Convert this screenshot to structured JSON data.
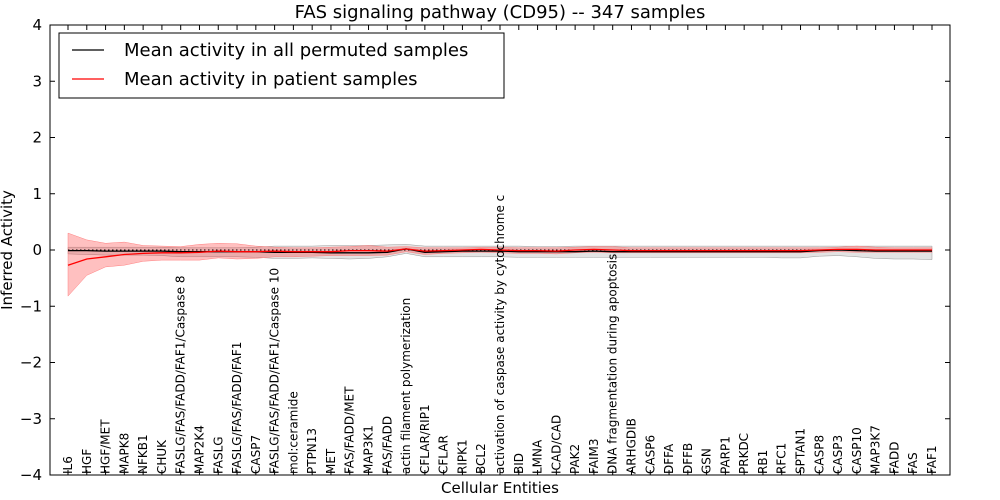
{
  "chart_data": {
    "type": "line",
    "title": "FAS signaling pathway (CD95) -- 347 samples",
    "xlabel": "Cellular Entities",
    "ylabel": "Inferred Activity",
    "ylim": [
      -4,
      4
    ],
    "yticks": [
      "4",
      "3",
      "2",
      "1",
      "0",
      "−1",
      "−2",
      "−3",
      "−4"
    ],
    "legend_position": "top-left",
    "categories": [
      "IL6",
      "HGF",
      "HGF/MET",
      "MAPK8",
      "NFKB1",
      "CHUK",
      "FASLG/FAS/FADD/FAF1/Caspase 8",
      "MAP2K4",
      "FASLG",
      "FASLG/FAS/FADD/FAF1",
      "CASP7",
      "FASLG/FAS/FADD/FAF1/Caspase 10",
      "mol:ceramide",
      "PTPN13",
      "MET",
      "FAS/FADD/MET",
      "MAP3K1",
      "FAS/FADD",
      "actin filament polymerization",
      "CFLAR/RIP1",
      "CFLAR",
      "RIPK1",
      "BCL2",
      "activation of caspase activity by cytochrome c",
      "BID",
      "LMNA",
      "ICAD/CAD",
      "PAK2",
      "FAIM3",
      "DNA fragmentation during apoptosis",
      "ARHGDIB",
      "CASP6",
      "DFFA",
      "DFFB",
      "GSN",
      "PARP1",
      "PRKDC",
      "RB1",
      "RFC1",
      "SPTAN1",
      "CASP8",
      "CASP3",
      "CASP10",
      "MAP3K7",
      "FADD",
      "FAS",
      "FAF1"
    ],
    "series": [
      {
        "name": "Mean activity in all permuted samples",
        "color": "#000000",
        "values": [
          -0.01,
          -0.01,
          -0.02,
          -0.02,
          -0.02,
          -0.02,
          -0.03,
          -0.03,
          -0.03,
          -0.03,
          -0.03,
          -0.04,
          -0.04,
          -0.04,
          -0.05,
          -0.05,
          -0.05,
          -0.04,
          0.02,
          -0.04,
          -0.03,
          -0.02,
          -0.02,
          -0.02,
          -0.03,
          -0.03,
          -0.03,
          -0.03,
          -0.02,
          -0.03,
          -0.03,
          -0.03,
          -0.03,
          -0.03,
          -0.03,
          -0.03,
          -0.03,
          -0.03,
          -0.03,
          -0.03,
          -0.01,
          0.0,
          -0.01,
          -0.02,
          -0.02,
          -0.02,
          -0.02
        ],
        "band_upper": [
          0.05,
          0.05,
          0.05,
          0.05,
          0.05,
          0.05,
          0.04,
          0.04,
          0.04,
          0.04,
          0.05,
          0.07,
          0.07,
          0.07,
          0.08,
          0.08,
          0.08,
          0.09,
          0.1,
          0.07,
          0.07,
          0.07,
          0.07,
          0.07,
          0.07,
          0.06,
          0.06,
          0.07,
          0.07,
          0.07,
          0.07,
          0.07,
          0.07,
          0.07,
          0.07,
          0.07,
          0.07,
          0.07,
          0.07,
          0.07,
          0.07,
          0.07,
          0.07,
          0.07,
          0.07,
          0.07,
          0.07
        ],
        "band_lower": [
          -0.07,
          -0.08,
          -0.09,
          -0.09,
          -0.09,
          -0.1,
          -0.12,
          -0.12,
          -0.12,
          -0.12,
          -0.13,
          -0.15,
          -0.15,
          -0.14,
          -0.15,
          -0.16,
          -0.15,
          -0.12,
          -0.06,
          -0.12,
          -0.12,
          -0.12,
          -0.12,
          -0.12,
          -0.13,
          -0.13,
          -0.13,
          -0.13,
          -0.13,
          -0.13,
          -0.13,
          -0.13,
          -0.13,
          -0.13,
          -0.13,
          -0.13,
          -0.13,
          -0.13,
          -0.14,
          -0.14,
          -0.11,
          -0.1,
          -0.12,
          -0.15,
          -0.16,
          -0.16,
          -0.17
        ]
      },
      {
        "name": "Mean activity in patient samples",
        "color": "#ff0000",
        "values": [
          -0.27,
          -0.16,
          -0.12,
          -0.08,
          -0.06,
          -0.05,
          -0.05,
          -0.04,
          -0.02,
          -0.03,
          -0.03,
          -0.02,
          -0.03,
          -0.03,
          -0.03,
          -0.01,
          -0.01,
          -0.02,
          0.02,
          -0.02,
          -0.01,
          0.0,
          0.01,
          0.0,
          -0.01,
          -0.01,
          -0.02,
          0.0,
          0.01,
          0.0,
          -0.01,
          -0.01,
          -0.01,
          -0.01,
          -0.01,
          -0.01,
          -0.01,
          -0.01,
          -0.01,
          -0.01,
          0.0,
          0.01,
          0.01,
          0.0,
          0.0,
          0.0,
          0.0
        ],
        "band_upper": [
          0.3,
          0.18,
          0.12,
          0.14,
          0.08,
          0.07,
          0.06,
          0.1,
          0.12,
          0.11,
          0.07,
          0.05,
          0.04,
          0.04,
          0.05,
          0.06,
          0.08,
          0.05,
          0.06,
          0.04,
          0.04,
          0.04,
          0.05,
          0.05,
          0.04,
          0.04,
          0.04,
          0.05,
          0.06,
          0.06,
          0.04,
          0.04,
          0.04,
          0.04,
          0.04,
          0.04,
          0.04,
          0.04,
          0.04,
          0.04,
          0.04,
          0.05,
          0.07,
          0.05,
          0.04,
          0.04,
          0.04
        ],
        "band_lower": [
          -0.82,
          -0.45,
          -0.3,
          -0.27,
          -0.2,
          -0.18,
          -0.18,
          -0.18,
          -0.14,
          -0.16,
          -0.15,
          -0.12,
          -0.12,
          -0.11,
          -0.1,
          -0.1,
          -0.1,
          -0.09,
          -0.03,
          -0.08,
          -0.06,
          -0.05,
          -0.04,
          -0.05,
          -0.06,
          -0.06,
          -0.07,
          -0.05,
          -0.04,
          -0.05,
          -0.05,
          -0.05,
          -0.05,
          -0.05,
          -0.05,
          -0.05,
          -0.05,
          -0.05,
          -0.05,
          -0.05,
          -0.04,
          -0.03,
          -0.04,
          -0.04,
          -0.04,
          -0.04,
          -0.04
        ]
      }
    ]
  }
}
